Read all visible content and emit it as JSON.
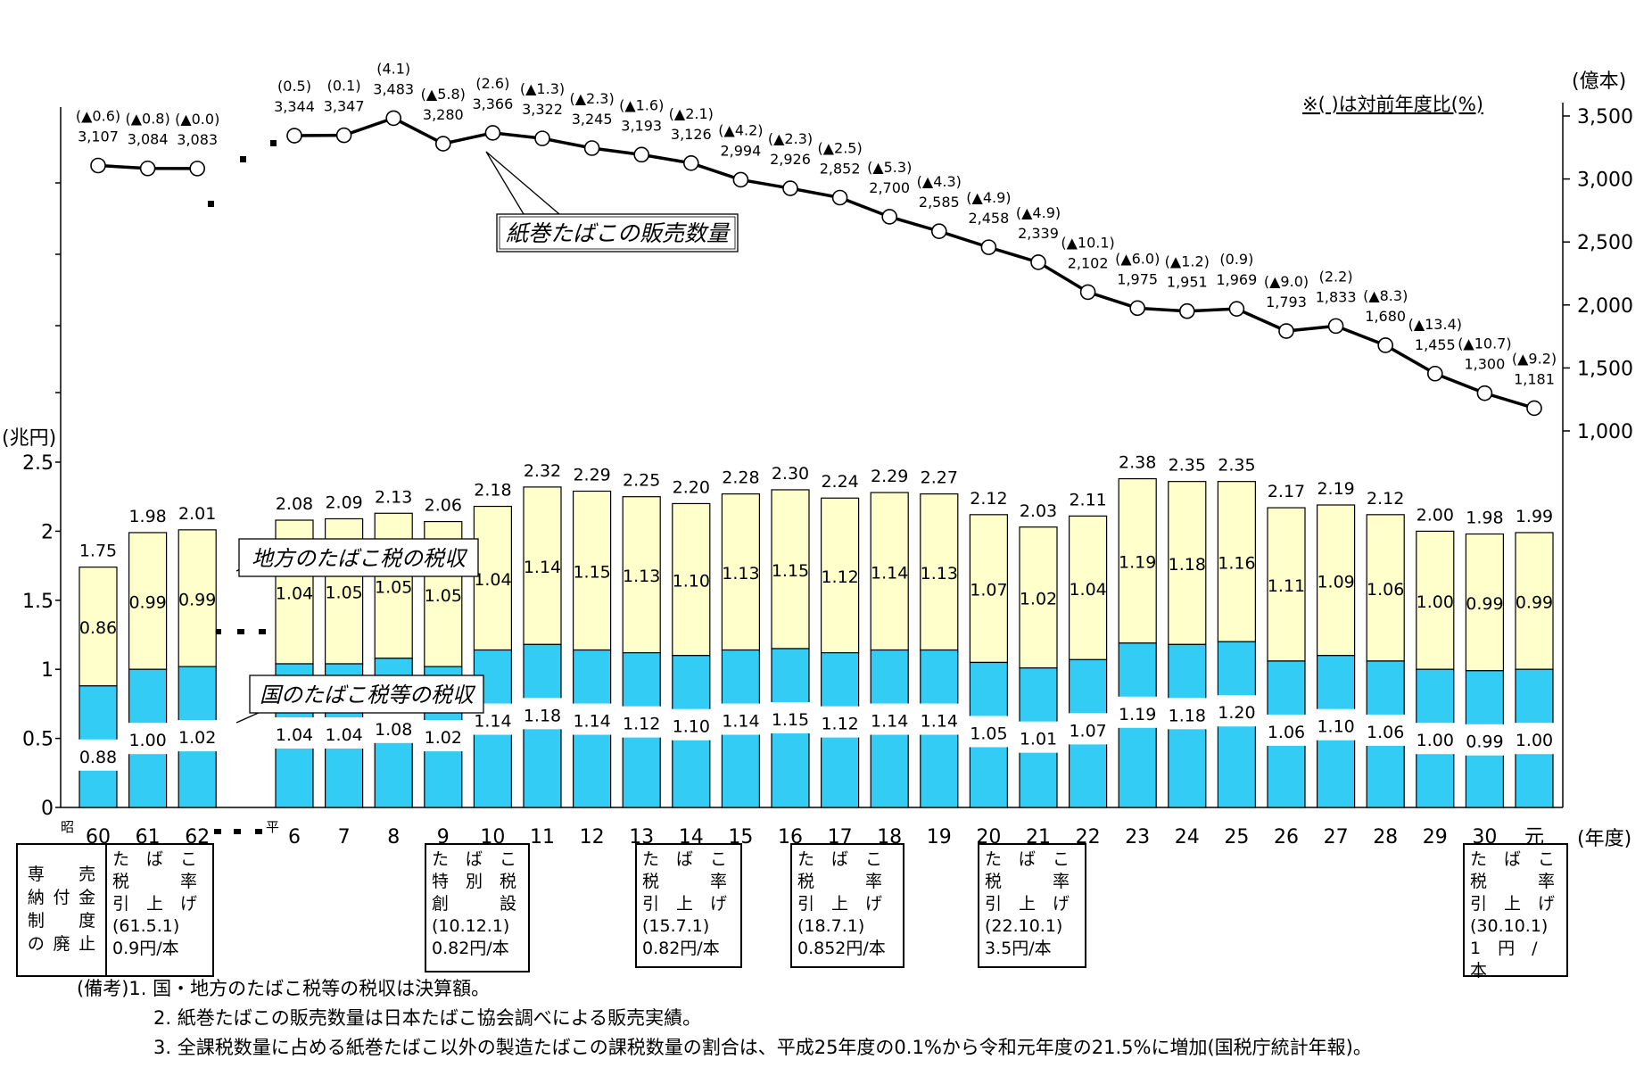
{
  "chart_data": {
    "type": "bar+line",
    "note_label": "※(  )は対前年度比(%)",
    "y_left": {
      "unit": "(兆円)",
      "ticks": [
        "0",
        "0.5",
        "1",
        "1.5",
        "2",
        "2.5"
      ],
      "range": [
        0,
        2.5
      ]
    },
    "y_right": {
      "unit": "(億本)",
      "ticks": [
        "1,000",
        "1,500",
        "2,000",
        "2,500",
        "3,000",
        "3,500"
      ],
      "range": [
        1000,
        3500
      ]
    },
    "x_unit": "(年度)",
    "era_showa": "昭",
    "era_heisei": "平",
    "categories": [
      "60",
      "61",
      "62",
      "6",
      "7",
      "8",
      "9",
      "10",
      "11",
      "12",
      "13",
      "14",
      "15",
      "16",
      "17",
      "18",
      "19",
      "20",
      "21",
      "22",
      "23",
      "24",
      "25",
      "26",
      "27",
      "28",
      "29",
      "30",
      "元"
    ],
    "series": [
      {
        "name": "国のたばこ税等の税収",
        "color": "#33ccf5",
        "values": [
          0.88,
          1.0,
          1.02,
          1.04,
          1.04,
          1.08,
          1.02,
          1.14,
          1.18,
          1.14,
          1.12,
          1.1,
          1.14,
          1.15,
          1.12,
          1.14,
          1.14,
          1.05,
          1.01,
          1.07,
          1.19,
          1.18,
          1.2,
          1.06,
          1.1,
          1.06,
          1.0,
          0.99,
          1.0
        ],
        "labels": [
          "0.88",
          "1.00",
          "1.02",
          "1.04",
          "1.04",
          "1.08",
          "1.02",
          "1.14",
          "1.18",
          "1.14",
          "1.12",
          "1.10",
          "1.14",
          "1.15",
          "1.12",
          "1.14",
          "1.14",
          "1.05",
          "1.01",
          "1.07",
          "1.19",
          "1.18",
          "1.20",
          "1.06",
          "1.10",
          "1.06",
          "1.00",
          "0.99",
          "1.00"
        ]
      },
      {
        "name": "地方のたばこ税の税収",
        "color": "#ffffcc",
        "values": [
          0.86,
          0.99,
          0.99,
          1.04,
          1.05,
          1.05,
          1.05,
          1.04,
          1.14,
          1.15,
          1.13,
          1.1,
          1.13,
          1.15,
          1.12,
          1.14,
          1.13,
          1.07,
          1.02,
          1.04,
          1.19,
          1.18,
          1.16,
          1.11,
          1.09,
          1.06,
          1.0,
          0.99,
          0.99
        ],
        "labels": [
          "0.86",
          "0.99",
          "0.99",
          "1.04",
          "1.05",
          "1.05",
          "1.05",
          "1.04",
          "1.14",
          "1.15",
          "1.13",
          "1.10",
          "1.13",
          "1.15",
          "1.12",
          "1.14",
          "1.13",
          "1.07",
          "1.02",
          "1.04",
          "1.19",
          "1.18",
          "1.16",
          "1.11",
          "1.09",
          "1.06",
          "1.00",
          "0.99",
          "0.99"
        ]
      }
    ],
    "totals": {
      "values": [
        1.75,
        1.98,
        2.01,
        2.08,
        2.09,
        2.13,
        2.06,
        2.18,
        2.32,
        2.29,
        2.25,
        2.2,
        2.28,
        2.3,
        2.24,
        2.29,
        2.27,
        2.12,
        2.03,
        2.11,
        2.38,
        2.35,
        2.35,
        2.17,
        2.19,
        2.12,
        2.0,
        1.98,
        1.99
      ],
      "labels": [
        "1.75",
        "1.98",
        "2.01",
        "2.08",
        "2.09",
        "2.13",
        "2.06",
        "2.18",
        "2.32",
        "2.29",
        "2.25",
        "2.20",
        "2.28",
        "2.30",
        "2.24",
        "2.29",
        "2.27",
        "2.12",
        "2.03",
        "2.11",
        "2.38",
        "2.35",
        "2.35",
        "2.17",
        "2.19",
        "2.12",
        "2.00",
        "1.98",
        "1.99"
      ]
    },
    "line": {
      "name": "紙巻たばこの販売数量",
      "values": [
        3107,
        3084,
        3083,
        3344,
        3347,
        3483,
        3280,
        3366,
        3322,
        3245,
        3193,
        3126,
        2994,
        2926,
        2852,
        2700,
        2585,
        2458,
        2339,
        2102,
        1975,
        1951,
        1969,
        1793,
        1833,
        1680,
        1455,
        1300,
        1181
      ],
      "labels": [
        "3,107",
        "3,084",
        "3,083",
        "3,344",
        "3,347",
        "3,483",
        "3,280",
        "3,366",
        "3,322",
        "3,245",
        "3,193",
        "3,126",
        "2,994",
        "2,926",
        "2,852",
        "2,700",
        "2,585",
        "2,458",
        "2,339",
        "2,102",
        "1,975",
        "1,951",
        "1,969",
        "1,793",
        "1,833",
        "1,680",
        "1,455",
        "1,300",
        "1,181"
      ],
      "yoy": [
        "(▲0.6)",
        "(▲0.8)",
        "(▲0.0)",
        "(0.5)",
        "(0.1)",
        "(4.1)",
        "(▲5.8)",
        "(2.6)",
        "(▲1.3)",
        "(▲2.3)",
        "(▲1.6)",
        "(▲2.1)",
        "(▲4.2)",
        "(▲2.3)",
        "(▲2.5)",
        "(▲5.3)",
        "(▲4.3)",
        "(▲4.9)",
        "(▲4.9)",
        "(▲10.1)",
        "(▲6.0)",
        "(▲1.2)",
        "(0.9)",
        "(▲9.0)",
        "(2.2)",
        "(▲8.3)",
        "(▲13.4)",
        "(▲10.7)",
        "(▲9.2)"
      ]
    }
  },
  "notes": {
    "box1": [
      "専",
      "売",
      "納",
      "付",
      "金",
      "制",
      "度",
      "の",
      "廃",
      "止"
    ],
    "box1_cols": [
      [
        "売",
        "金",
        "度",
        "止"
      ],
      [
        "",
        "付",
        "",
        "廃"
      ],
      [
        "専",
        "納",
        "制",
        "の"
      ]
    ],
    "box2": [
      "た　ば　こ",
      "税　　　率",
      "引　上　げ",
      "(61.5.1)",
      "0.9円/本"
    ],
    "box3": [
      "た　ば　こ",
      "特　別　税",
      "創　　　設",
      "(10.12.1)",
      "0.82円/本"
    ],
    "box4": [
      "た　ば　こ",
      "税　　　率",
      "引　上　げ",
      "(15.7.1)",
      "0.82円/本"
    ],
    "box5": [
      "た　ば　こ",
      "税　　　率",
      "引　上　げ",
      "(18.7.1)",
      "0.852円/本"
    ],
    "box6": [
      "た　ば　こ",
      "税　　　率",
      "引　上　げ",
      "(22.10.1)",
      "3.5円/本"
    ],
    "box7": [
      "た　ば　こ",
      "税　　　率",
      "引　上　げ",
      "(30.10.1)",
      "1　円　/　本"
    ]
  },
  "remarks": {
    "head": "(備考)1. 国・地方のたばこ税等の税収は決算額。",
    "item2": "2. 紙巻たばこの販売数量は日本たばこ協会調べによる販売実績。",
    "item3": "3. 全課税数量に占める紙巻たばこ以外の製造たばこの課税数量の割合は、平成25年度の0.1%から令和元年度の21.5%に増加(国税庁統計年報)。"
  }
}
